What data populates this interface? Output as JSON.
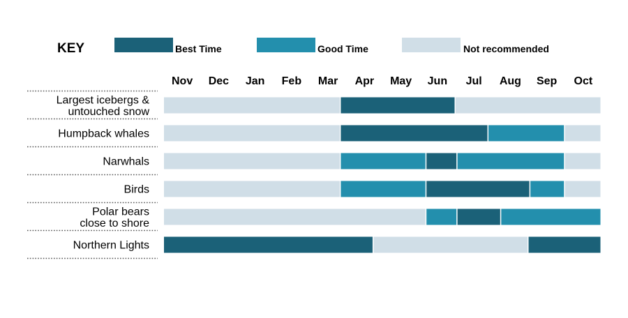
{
  "key": {
    "title": "KEY",
    "items": [
      {
        "label": "Best Time",
        "color": "#1b6178"
      },
      {
        "label": "Good Time",
        "color": "#238fad"
      },
      {
        "label": "Not recommended",
        "color": "#d0dee7"
      }
    ]
  },
  "chart_data": {
    "type": "timeline",
    "months": [
      "Nov",
      "Dec",
      "Jan",
      "Feb",
      "Mar",
      "Apr",
      "May",
      "Jun",
      "Jul",
      "Aug",
      "Sep",
      "Oct"
    ],
    "status_colors": {
      "best": "#1b6178",
      "good": "#238fad",
      "not": "#d0dee7"
    },
    "rows": [
      {
        "label": [
          "Largest icebergs &",
          "untouched snow"
        ],
        "segments": [
          {
            "start": 0,
            "end": 4.85,
            "status": "not"
          },
          {
            "start": 4.85,
            "end": 8.0,
            "status": "best"
          },
          {
            "start": 8.0,
            "end": 12,
            "status": "not"
          }
        ]
      },
      {
        "label": [
          "Humpback whales"
        ],
        "segments": [
          {
            "start": 0,
            "end": 4.85,
            "status": "not"
          },
          {
            "start": 4.85,
            "end": 8.9,
            "status": "best"
          },
          {
            "start": 8.9,
            "end": 11.0,
            "status": "good"
          },
          {
            "start": 11.0,
            "end": 12,
            "status": "not"
          }
        ]
      },
      {
        "label": [
          "Narwhals"
        ],
        "segments": [
          {
            "start": 0,
            "end": 4.85,
            "status": "not"
          },
          {
            "start": 4.85,
            "end": 7.2,
            "status": "good"
          },
          {
            "start": 7.2,
            "end": 8.05,
            "status": "best"
          },
          {
            "start": 8.05,
            "end": 11.0,
            "status": "good"
          },
          {
            "start": 11.0,
            "end": 12,
            "status": "not"
          }
        ]
      },
      {
        "label": [
          "Birds"
        ],
        "segments": [
          {
            "start": 0,
            "end": 4.85,
            "status": "not"
          },
          {
            "start": 4.85,
            "end": 7.2,
            "status": "good"
          },
          {
            "start": 7.2,
            "end": 10.05,
            "status": "best"
          },
          {
            "start": 10.05,
            "end": 11.0,
            "status": "good"
          },
          {
            "start": 11.0,
            "end": 12,
            "status": "not"
          }
        ]
      },
      {
        "label": [
          "Polar bears",
          "close to shore"
        ],
        "segments": [
          {
            "start": 0,
            "end": 7.2,
            "status": "not"
          },
          {
            "start": 7.2,
            "end": 8.05,
            "status": "good"
          },
          {
            "start": 8.05,
            "end": 9.25,
            "status": "best"
          },
          {
            "start": 9.25,
            "end": 12,
            "status": "good"
          }
        ]
      },
      {
        "label": [
          "Northern Lights"
        ],
        "segments": [
          {
            "start": 0,
            "end": 5.75,
            "status": "best"
          },
          {
            "start": 5.75,
            "end": 10.0,
            "status": "not"
          },
          {
            "start": 10.0,
            "end": 12,
            "status": "best"
          }
        ]
      }
    ]
  }
}
